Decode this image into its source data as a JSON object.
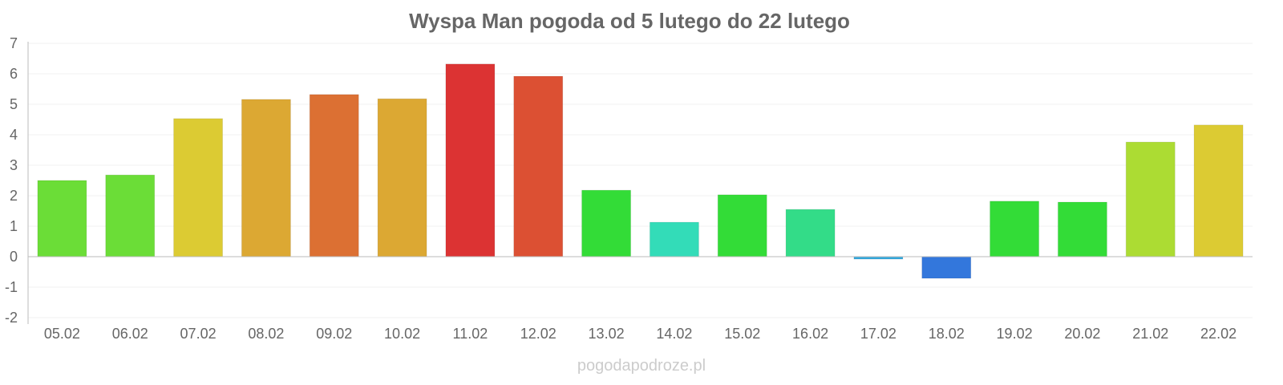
{
  "chart_data": {
    "type": "bar",
    "title": "Wyspa Man pogoda od 5 lutego do 22 lutego",
    "xlabel": "",
    "ylabel": "",
    "ylim": [
      -2,
      7
    ],
    "yticks": [
      "7",
      "6",
      "5",
      "4",
      "3",
      "2",
      "1",
      "0",
      "-1",
      "-2"
    ],
    "grid": true,
    "categories": [
      "05.02",
      "06.02",
      "07.02",
      "08.02",
      "09.02",
      "10.02",
      "11.02",
      "12.02",
      "13.02",
      "14.02",
      "15.02",
      "16.02",
      "17.02",
      "18.02",
      "19.02",
      "20.02",
      "21.02",
      "22.02"
    ],
    "values": [
      2.5,
      2.68,
      4.53,
      5.16,
      5.32,
      5.18,
      6.32,
      5.92,
      2.18,
      1.13,
      2.03,
      1.55,
      -0.08,
      -0.71,
      1.82,
      1.79,
      3.76,
      4.32
    ],
    "colors": [
      "#6bdd37",
      "#6bdd37",
      "#dccb33",
      "#dca833",
      "#dc7033",
      "#dca833",
      "#dc3333",
      "#dc5033",
      "#33dc37",
      "#33dcb8",
      "#33dc37",
      "#33dc88",
      "#33a8dc",
      "#3377dc",
      "#33dc37",
      "#33dc37",
      "#acdc33",
      "#dccb33"
    ]
  },
  "watermark": "pogodapodroze.pl"
}
